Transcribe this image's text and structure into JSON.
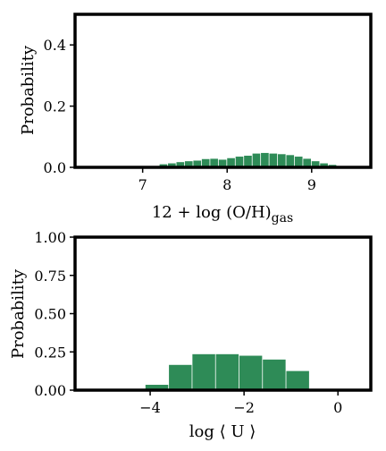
{
  "colors": {
    "bar": "#2e8b57",
    "frame": "#000000",
    "background": "#ffffff"
  },
  "chart_data": [
    {
      "type": "bar",
      "title": "",
      "xlabel": "12 + log (O/H)",
      "xlabel_sub": "gas",
      "ylabel": "Probability",
      "xlim": [
        6.2,
        9.7
      ],
      "ylim": [
        0,
        0.5
      ],
      "xticks": [
        7,
        8,
        9
      ],
      "xtick_labels": [
        "7",
        "8",
        "9"
      ],
      "yticks": [
        0.0,
        0.2,
        0.4
      ],
      "ytick_labels": [
        "0.0",
        "0.2",
        "0.4"
      ],
      "bin_width": 0.1,
      "bins_left": [
        7.2,
        7.3,
        7.4,
        7.5,
        7.6,
        7.7,
        7.8,
        7.9,
        8.0,
        8.1,
        8.2,
        8.3,
        8.4,
        8.5,
        8.6,
        8.7,
        8.8,
        8.9,
        9.0,
        9.1,
        9.2,
        9.3
      ],
      "values": [
        0.01,
        0.013,
        0.017,
        0.02,
        0.022,
        0.027,
        0.028,
        0.025,
        0.03,
        0.035,
        0.038,
        0.045,
        0.047,
        0.045,
        0.043,
        0.04,
        0.035,
        0.028,
        0.02,
        0.013,
        0.008,
        0.004
      ],
      "grid": false
    },
    {
      "type": "bar",
      "title": "",
      "xlabel": "log ⟨ U ⟩",
      "ylabel": "Probability",
      "xlim": [
        -5.6,
        0.7
      ],
      "ylim": [
        0,
        1.0
      ],
      "xticks": [
        -4,
        -2,
        0
      ],
      "xtick_labels": [
        "−4",
        "−2",
        "0"
      ],
      "yticks": [
        0.0,
        0.25,
        0.5,
        0.75,
        1.0
      ],
      "ytick_labels": [
        "0.00",
        "0.25",
        "0.50",
        "0.75",
        "1.00"
      ],
      "bin_width": 0.5,
      "bins_left": [
        -4.1,
        -3.6,
        -3.1,
        -2.6,
        -2.1,
        -1.6,
        -1.1
      ],
      "values": [
        0.035,
        0.165,
        0.235,
        0.235,
        0.225,
        0.2,
        0.125
      ],
      "grid": false
    }
  ]
}
